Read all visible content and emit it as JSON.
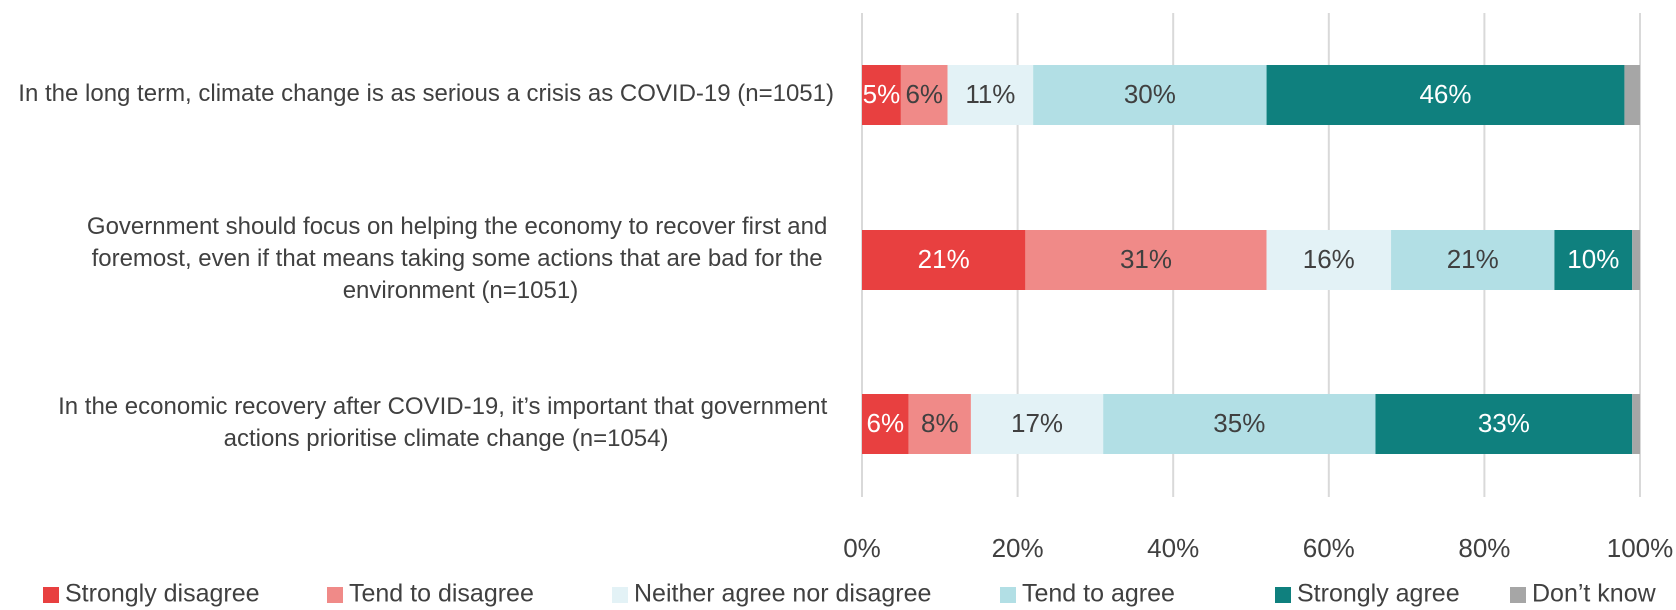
{
  "chart_data": {
    "type": "stacked_barh",
    "categories": [
      "In the long term, climate change is as serious a crisis as COVID-19 (n=1051)",
      "Government should focus on helping the economy to recover first and foremost, even if that means taking some actions that are bad for the environment (n=1051)",
      "In the economic recovery after COVID-19, it’s important that government actions prioritise climate change (n=1054)"
    ],
    "series": [
      {
        "name": "Strongly disagree",
        "color": "#e84040",
        "label_color": "#ffffff",
        "values": [
          5,
          21,
          6
        ],
        "value_labels": [
          "5%",
          "21%",
          "6%"
        ]
      },
      {
        "name": "Tend to disagree",
        "color": "#f08a88",
        "label_color": "#404040",
        "values": [
          6,
          31,
          8
        ],
        "value_labels": [
          "6%",
          "31%",
          "8%"
        ]
      },
      {
        "name": "Neither agree nor disagree",
        "color": "#e3f2f6",
        "label_color": "#404040",
        "values": [
          11,
          16,
          17
        ],
        "value_labels": [
          "11%",
          "16%",
          "17%"
        ]
      },
      {
        "name": "Tend to agree",
        "color": "#b2dfe5",
        "label_color": "#404040",
        "values": [
          30,
          21,
          35
        ],
        "value_labels": [
          "30%",
          "21%",
          "35%"
        ]
      },
      {
        "name": "Strongly agree",
        "color": "#0f807e",
        "label_color": "#ffffff",
        "values": [
          46,
          10,
          33
        ],
        "value_labels": [
          "46%",
          "10%",
          "33%"
        ]
      },
      {
        "name": "Don’t know",
        "color": "#a6a6a6",
        "values": [
          2,
          1,
          1
        ]
      }
    ],
    "xlim": [
      0,
      100
    ],
    "xticks": [
      {
        "value": 0,
        "label": "0%"
      },
      {
        "value": 20,
        "label": "20%"
      },
      {
        "value": 40,
        "label": "40%"
      },
      {
        "value": 60,
        "label": "60%"
      },
      {
        "value": 80,
        "label": "80%"
      },
      {
        "value": 100,
        "label": "100%"
      }
    ],
    "grid": true,
    "legend": "bottom"
  }
}
